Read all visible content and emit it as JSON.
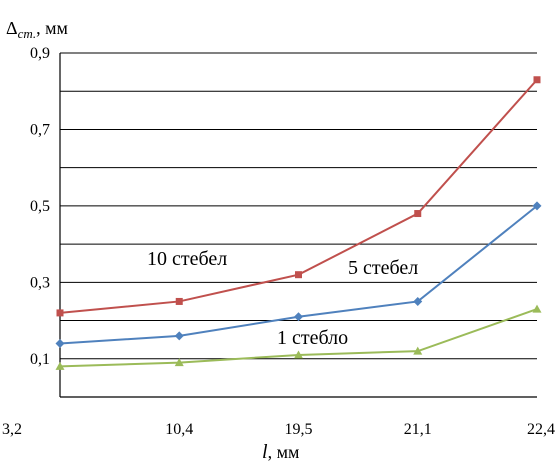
{
  "chart_data": {
    "type": "line",
    "categories": [
      "3,2",
      "10,4",
      "19,5",
      "21,1",
      "22,4"
    ],
    "ylabel": "Δcт., мм",
    "ylabel_parts": {
      "main": "Δ",
      "sub": "cт.",
      "suffix": ", мм"
    },
    "xlabel": "l, мм",
    "xlabel_parts": {
      "var": "l",
      "suffix": ", мм"
    },
    "ylim": [
      0,
      0.9
    ],
    "yticks": [
      0.1,
      0.3,
      0.5,
      0.7,
      0.9
    ],
    "ytick_labels": [
      "0,1",
      "0,3",
      "0,5",
      "0,7",
      "0,9"
    ],
    "grid_lines": [
      0.1,
      0.2,
      0.3,
      0.4,
      0.5,
      0.6,
      0.7,
      0.8,
      0.9
    ],
    "grid": true,
    "series": [
      {
        "name": "10 стебел",
        "color": "#c0504d",
        "marker": "square",
        "values": [
          0.22,
          0.25,
          0.32,
          0.48,
          0.83
        ]
      },
      {
        "name": "5 стебел",
        "color": "#4f81bd",
        "marker": "diamond",
        "values": [
          0.14,
          0.16,
          0.21,
          0.25,
          0.5
        ]
      },
      {
        "name": "1 стебло",
        "color": "#9bbb59",
        "marker": "triangle",
        "values": [
          0.08,
          0.09,
          0.11,
          0.12,
          0.23
        ]
      }
    ]
  }
}
